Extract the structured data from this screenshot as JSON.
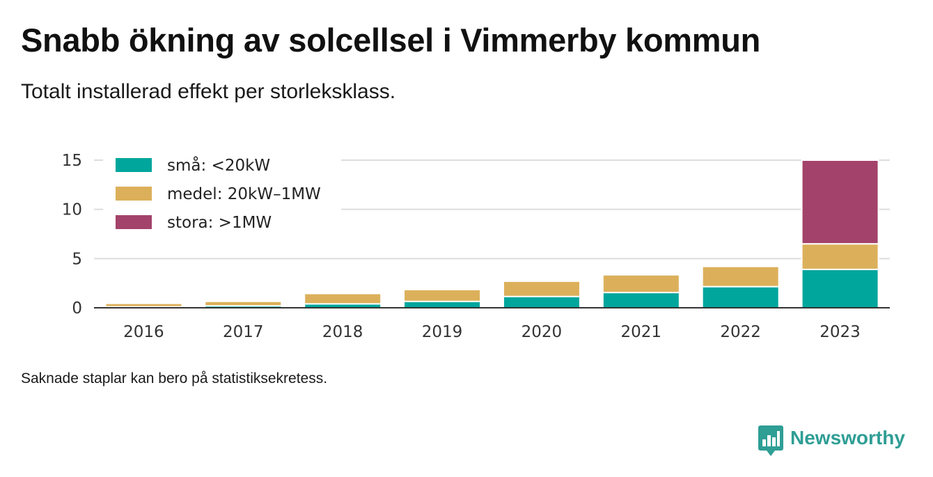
{
  "title": "Snabb ökning av solcellsel i Vimmerby kommun",
  "subtitle": "Totalt installerad effekt per storleksklass.",
  "note": "Saknade staplar kan bero på statistiksekretess.",
  "brand": {
    "name": "Newsworthy",
    "icon": "newsworthy-logo-icon",
    "color": "#2f9e95"
  },
  "chart_data": {
    "type": "bar",
    "stacked": true,
    "categories": [
      "2016",
      "2017",
      "2018",
      "2019",
      "2020",
      "2021",
      "2022",
      "2023"
    ],
    "series": [
      {
        "name": "små: <20kW",
        "color": "#00a69c",
        "values": [
          0.1,
          0.2,
          0.4,
          0.65,
          1.15,
          1.55,
          2.15,
          3.9
        ]
      },
      {
        "name": "medel: 20kW–1MW",
        "color": "#dcb05a",
        "values": [
          0.35,
          0.45,
          1.05,
          1.2,
          1.55,
          1.8,
          2.05,
          2.6
        ]
      },
      {
        "name": "stora: >1MW",
        "color": "#a3426a",
        "values": [
          0,
          0,
          0,
          0,
          0,
          0,
          0,
          8.5
        ]
      }
    ],
    "y_ticks": [
      0,
      5,
      10,
      15
    ],
    "ylim": [
      0,
      15
    ],
    "grid": true,
    "legend_position": "top-left",
    "xlabel": "",
    "ylabel": ""
  }
}
